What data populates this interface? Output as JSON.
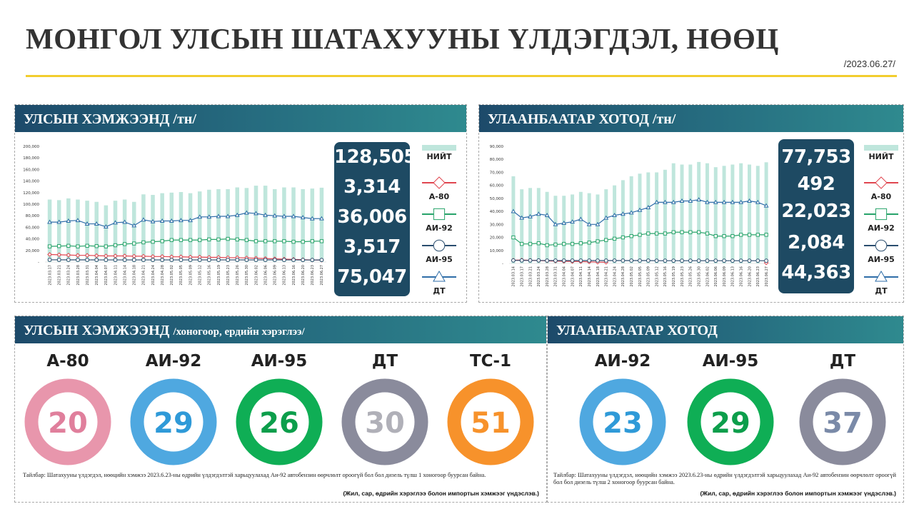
{
  "header": {
    "title": "МОНГОЛ УЛСЫН ШАТАХУУНЫ ҮЛДЭГДЭЛ, НӨӨЦ",
    "date": "/2023.06.27/"
  },
  "colors": {
    "total": "#bfe6dc",
    "a80": "#e0454f",
    "ai92": "#27a36a",
    "ai95": "#2a4d6e",
    "dt": "#2f6ea8",
    "accent_line": "#f2cd2e"
  },
  "legend": {
    "total": "НИЙТ",
    "a80": "А-80",
    "ai92": "АИ-92",
    "ai95": "АИ-95",
    "dt": "ДТ"
  },
  "national": {
    "title": "УЛСЫН ХЭМЖЭЭНД /тн/",
    "values": [
      "128,505",
      "3,314",
      "36,006",
      "3,517",
      "75,047"
    ]
  },
  "ulaanbaatar": {
    "title": "УЛААНБААТАР ХОТОД /тн/",
    "values": [
      "77,753",
      "492",
      "22,023",
      "2,084",
      "44,363"
    ]
  },
  "days_national": {
    "title_main": "УЛСЫН ХЭМЖЭЭНД",
    "title_sub": "/хоногоор, ердийн хэрэглээ/",
    "items": [
      {
        "label": "А-80",
        "value": "20",
        "ring_color": "#e896ac",
        "text_color": "#e07f9c"
      },
      {
        "label": "АИ-92",
        "value": "29",
        "ring_color": "#4fa8e0",
        "text_color": "#2f9ad8"
      },
      {
        "label": "АИ-95",
        "value": "26",
        "ring_color": "#0fae55",
        "text_color": "#0c9e4b"
      },
      {
        "label": "ДТ",
        "value": "30",
        "ring_color": "#8a8b9c",
        "text_color": "#b0b0b8"
      },
      {
        "label": "ТС-1",
        "value": "51",
        "ring_color": "#f7922b",
        "text_color": "#f7922b"
      }
    ],
    "note": "Тайлбар: Шатахууны үлдэгдэл, нөөцийн хэмжээ 2023.6.23-ны өдрийн үлдэгдэлтэй харьцуулахад Аи-92 автобензин өөрчлөлт ороогүй бол бол дизель түлш 1 хоногоор буурсан байна.",
    "source": "(Жил, сар, өдрийн хэрэглээ болон импортын хэмжээг үндэслэв.)"
  },
  "days_ub": {
    "title_main": "УЛААНБААТАР ХОТОД",
    "items": [
      {
        "label": "АИ-92",
        "value": "23",
        "ring_color": "#4fa8e0",
        "text_color": "#2f9ad8"
      },
      {
        "label": "АИ-95",
        "value": "29",
        "ring_color": "#0fae55",
        "text_color": "#0c9e4b"
      },
      {
        "label": "ДТ",
        "value": "37",
        "ring_color": "#8a8b9c",
        "text_color": "#7a8aa8"
      }
    ],
    "note": "Тайлбар: Шатахууны үлдэгдэл, нөөцийн хэмжээ 2023.6.23-ны өдрийн үлдэгдэлтэй харьцуулахад Аи-92 автобензин өөрчлөлт ороогүй бол бол дизель түлш 2 хоногоор буурсан байна.",
    "source": "(Жил, сар, өдрийн хэрэглээ болон импортын хэмжээг үндэслэв.)"
  },
  "chart_data": [
    {
      "type": "bar",
      "title": "УЛСЫН ХЭМЖЭЭНД /тн/",
      "ylim": [
        0,
        200000
      ],
      "yticks": [
        "200,000",
        "180,000",
        "160,000",
        "140,000",
        "120,000",
        "100,000",
        "80,000",
        "60,000",
        "40,000",
        "20,000",
        "-"
      ],
      "grid": false,
      "x": [
        "2023.03.17",
        "2023.03.21",
        "2023.03.24",
        "2023.03.28",
        "2023.03.31",
        "2023.04.04",
        "2023.04.07",
        "2023.04.11",
        "2023.04.14",
        "2023.04.18",
        "2023.04.21",
        "2023.04.24",
        "2023.04.28",
        "2023.05.02",
        "2023.05.05",
        "2023.05.09",
        "2023.05.12",
        "2023.05.16",
        "2023.05.19",
        "2023.05.23",
        "2023.05.26",
        "2023.05.30",
        "2023.06.02",
        "2023.06.06",
        "2023.06.09",
        "2023.06.13",
        "2023.06.16",
        "2023.06.20",
        "2023.06.23",
        "2023.06.27"
      ],
      "series": [
        {
          "name": "НИЙТ",
          "kind": "bar",
          "values": [
            108000,
            107000,
            110000,
            108000,
            106000,
            104000,
            98000,
            106000,
            108000,
            104000,
            117000,
            116000,
            119000,
            120000,
            121000,
            119000,
            122000,
            125000,
            126000,
            126000,
            129000,
            128000,
            132000,
            132000,
            126000,
            129000,
            129000,
            126000,
            127000,
            128505
          ]
        },
        {
          "name": "А-80",
          "kind": "line",
          "marker": "diamond",
          "values": [
            13000,
            12500,
            12000,
            11500,
            11500,
            11000,
            10500,
            10500,
            10500,
            10000,
            10000,
            9500,
            9500,
            9000,
            9000,
            8500,
            8500,
            8000,
            8000,
            7500,
            7500,
            7000,
            6500,
            6000,
            5500,
            5000,
            4500,
            4000,
            3500,
            3314
          ]
        },
        {
          "name": "АИ-92",
          "kind": "line",
          "marker": "square",
          "values": [
            27000,
            27500,
            28000,
            27000,
            28000,
            27500,
            27000,
            29000,
            31000,
            32000,
            34000,
            35000,
            36000,
            38000,
            38000,
            38000,
            38000,
            39000,
            39000,
            40000,
            39000,
            38000,
            36000,
            36000,
            36000,
            36000,
            35000,
            35000,
            36000,
            36006
          ]
        },
        {
          "name": "АИ-95",
          "kind": "line",
          "marker": "circle",
          "values": [
            3800,
            3800,
            3700,
            3700,
            3700,
            3600,
            3600,
            3600,
            3600,
            3600,
            3600,
            3600,
            3600,
            3600,
            3600,
            3600,
            3600,
            3600,
            3600,
            3600,
            3600,
            3600,
            3600,
            3600,
            3600,
            3600,
            3600,
            3500,
            3500,
            3517
          ]
        },
        {
          "name": "ДТ",
          "kind": "line",
          "marker": "triangle",
          "values": [
            69000,
            69000,
            71000,
            72000,
            66000,
            66000,
            61000,
            68000,
            69000,
            63000,
            73000,
            70000,
            71000,
            71000,
            72000,
            72000,
            78000,
            78000,
            79000,
            79000,
            81000,
            85000,
            84000,
            81000,
            80000,
            79000,
            79000,
            77000,
            75000,
            75047
          ]
        }
      ]
    },
    {
      "type": "bar",
      "title": "УЛААНБААТАР ХОТОД /тн/",
      "ylim": [
        0,
        90000
      ],
      "yticks": [
        "90,000",
        "80,000",
        "70,000",
        "60,000",
        "50,000",
        "40,000",
        "30,000",
        "20,000",
        "10,000",
        "-"
      ],
      "grid": false,
      "x": [
        "2023.03.14",
        "2023.03.17",
        "2023.03.21",
        "2023.03.24",
        "2023.03.28",
        "2023.03.31",
        "2023.04.04",
        "2023.04.07",
        "2023.04.11",
        "2023.04.14",
        "2023.04.18",
        "2023.04.21",
        "2023.04.24",
        "2023.04.28",
        "2023.05.02",
        "2023.05.05",
        "2023.05.09",
        "2023.05.12",
        "2023.05.16",
        "2023.05.19",
        "2023.05.23",
        "2023.05.26",
        "2023.05.30",
        "2023.06.02",
        "2023.06.06",
        "2023.06.09",
        "2023.06.13",
        "2023.06.16",
        "2023.06.20",
        "2023.06.23",
        "2023.06.27"
      ],
      "series": [
        {
          "name": "НИЙТ",
          "kind": "bar",
          "values": [
            67000,
            57000,
            58000,
            58000,
            55000,
            52000,
            52000,
            53000,
            55000,
            54000,
            53000,
            57000,
            60000,
            64000,
            67000,
            69000,
            70000,
            70000,
            72000,
            77000,
            76000,
            76000,
            78000,
            77000,
            74000,
            75000,
            76000,
            77000,
            76000,
            75000,
            77753
          ]
        },
        {
          "name": "А-80",
          "kind": "line",
          "marker": "diamond",
          "values": [
            2500,
            2600,
            2400,
            2200,
            2000,
            1800,
            1600,
            1500,
            1400,
            1200,
            1000,
            900,
            null,
            null,
            null,
            null,
            null,
            null,
            null,
            null,
            null,
            null,
            null,
            null,
            null,
            null,
            null,
            null,
            null,
            null,
            492
          ]
        },
        {
          "name": "АИ-92",
          "kind": "line",
          "marker": "square",
          "values": [
            20000,
            15000,
            15000,
            15500,
            14000,
            14500,
            15000,
            15000,
            15500,
            16000,
            17000,
            18000,
            19000,
            20000,
            21000,
            22000,
            23000,
            23000,
            23000,
            24000,
            24000,
            24000,
            24000,
            23000,
            21000,
            21000,
            21000,
            22000,
            22000,
            22000,
            22023
          ]
        },
        {
          "name": "АИ-95",
          "kind": "line",
          "marker": "circle",
          "values": [
            2300,
            2300,
            2300,
            2300,
            2200,
            2200,
            2200,
            2200,
            2200,
            2200,
            2200,
            2200,
            2200,
            2200,
            2200,
            2200,
            2200,
            2100,
            2100,
            2100,
            2100,
            2100,
            2100,
            2100,
            2100,
            2100,
            2100,
            2100,
            2100,
            2100,
            2084
          ]
        },
        {
          "name": "ДТ",
          "kind": "line",
          "marker": "triangle",
          "values": [
            40000,
            35000,
            36000,
            38000,
            37000,
            30000,
            31000,
            32000,
            34000,
            30000,
            30000,
            35000,
            37000,
            38000,
            39000,
            41000,
            43000,
            47000,
            47000,
            47000,
            48000,
            48000,
            49000,
            47000,
            47000,
            47000,
            47000,
            47000,
            48000,
            47000,
            44363
          ]
        }
      ]
    },
    {
      "type": "pie",
      "title": "УЛСЫН ХЭМЖЭЭНД /хоногоор, ердийн хэрэглээ/",
      "categories": [
        "А-80",
        "АИ-92",
        "АИ-95",
        "ДТ",
        "ТС-1"
      ],
      "values": [
        20,
        29,
        26,
        30,
        51
      ]
    },
    {
      "type": "pie",
      "title": "УЛААНБААТАР ХОТОД",
      "categories": [
        "АИ-92",
        "АИ-95",
        "ДТ"
      ],
      "values": [
        23,
        29,
        37
      ]
    }
  ]
}
